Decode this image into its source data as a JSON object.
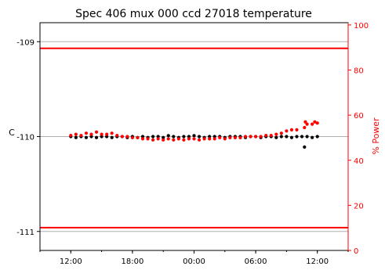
{
  "chart_data": {
    "type": "scatter",
    "title": "Spec 406 mux 000 ccd 27018 temperature",
    "ylabel": "C",
    "y2label": "% Power",
    "xlim": [
      "2000-01-01 09:00",
      "2000-01-02 15:00"
    ],
    "ylim": [
      -111.2,
      -108.8
    ],
    "y2lim": [
      0,
      101
    ],
    "xticks": [
      {
        "x": "2000-01-01 12:00",
        "label": "12:00"
      },
      {
        "x": "2000-01-01 18:00",
        "label": "18:00"
      },
      {
        "x": "2000-01-02 00:00",
        "label": "00:00"
      },
      {
        "x": "2000-01-02 06:00",
        "label": "06:00"
      },
      {
        "x": "2000-01-02 12:00",
        "label": "12:00"
      }
    ],
    "yticks": [
      {
        "y": -109,
        "label": "-109"
      },
      {
        "y": -110,
        "label": "-110"
      },
      {
        "y": -111,
        "label": "-111"
      }
    ],
    "y2ticks": [
      {
        "y": 0,
        "label": "0"
      },
      {
        "y": 20,
        "label": "20"
      },
      {
        "y": 40,
        "label": "40"
      },
      {
        "y": 60,
        "label": "60"
      },
      {
        "y": 80,
        "label": "80"
      },
      {
        "y": 100,
        "label": "100"
      }
    ],
    "reference_lines": [
      {
        "axis": "left",
        "y": -109.07,
        "color": "#ff0000"
      },
      {
        "axis": "left",
        "y": -110.96,
        "color": "#ff0000"
      }
    ],
    "grid_lines_y": [
      -109,
      -110,
      -111
    ],
    "series": [
      {
        "axis": "left",
        "color": "#000000",
        "points": [
          [
            "2000-01-01 12:00",
            -110.0
          ],
          [
            "2000-01-01 12:30",
            -110.01
          ],
          [
            "2000-01-01 13:00",
            -110.0
          ],
          [
            "2000-01-01 13:30",
            -110.01
          ],
          [
            "2000-01-01 14:00",
            -110.0
          ],
          [
            "2000-01-01 14:30",
            -110.01
          ],
          [
            "2000-01-01 15:00",
            -110.0
          ],
          [
            "2000-01-01 15:30",
            -110.0
          ],
          [
            "2000-01-01 16:00",
            -110.01
          ],
          [
            "2000-01-01 16:30",
            -110.0
          ],
          [
            "2000-01-01 17:00",
            -110.0
          ],
          [
            "2000-01-01 17:30",
            -110.01
          ],
          [
            "2000-01-01 18:00",
            -110.0
          ],
          [
            "2000-01-01 18:30",
            -110.01
          ],
          [
            "2000-01-01 19:00",
            -110.0
          ],
          [
            "2000-01-01 19:30",
            -110.01
          ],
          [
            "2000-01-01 20:00",
            -110.0
          ],
          [
            "2000-01-01 20:30",
            -110.0
          ],
          [
            "2000-01-01 21:00",
            -110.01
          ],
          [
            "2000-01-01 21:30",
            -109.99
          ],
          [
            "2000-01-01 22:00",
            -110.0
          ],
          [
            "2000-01-01 22:30",
            -110.01
          ],
          [
            "2000-01-01 23:00",
            -110.0
          ],
          [
            "2000-01-01 23:30",
            -110.0
          ],
          [
            "2000-01-02 00:00",
            -109.99
          ],
          [
            "2000-01-02 00:30",
            -110.0
          ],
          [
            "2000-01-02 01:00",
            -110.01
          ],
          [
            "2000-01-02 01:30",
            -110.0
          ],
          [
            "2000-01-02 02:00",
            -110.0
          ],
          [
            "2000-01-02 02:30",
            -110.0
          ],
          [
            "2000-01-02 03:00",
            -110.01
          ],
          [
            "2000-01-02 03:30",
            -110.0
          ],
          [
            "2000-01-02 04:00",
            -110.0
          ],
          [
            "2000-01-02 04:30",
            -110.0
          ],
          [
            "2000-01-02 05:00",
            -110.01
          ],
          [
            "2000-01-02 05:30",
            -110.0
          ],
          [
            "2000-01-02 06:00",
            -110.0
          ],
          [
            "2000-01-02 06:30",
            -110.01
          ],
          [
            "2000-01-02 07:00",
            -110.0
          ],
          [
            "2000-01-02 07:30",
            -110.0
          ],
          [
            "2000-01-02 08:00",
            -110.01
          ],
          [
            "2000-01-02 08:30",
            -110.0
          ],
          [
            "2000-01-02 09:00",
            -110.0
          ],
          [
            "2000-01-02 09:30",
            -110.01
          ],
          [
            "2000-01-02 10:00",
            -110.0
          ],
          [
            "2000-01-02 10:30",
            -110.0
          ],
          [
            "2000-01-02 10:45",
            -110.11
          ],
          [
            "2000-01-02 11:00",
            -110.0
          ],
          [
            "2000-01-02 11:30",
            -110.01
          ],
          [
            "2000-01-02 12:00",
            -110.0
          ]
        ]
      },
      {
        "axis": "right",
        "color": "#ff0000",
        "points": [
          [
            "2000-01-01 12:00",
            51.0
          ],
          [
            "2000-01-01 12:30",
            51.5
          ],
          [
            "2000-01-01 13:00",
            51.0
          ],
          [
            "2000-01-01 13:30",
            52.0
          ],
          [
            "2000-01-01 14:00",
            51.5
          ],
          [
            "2000-01-01 14:30",
            52.5
          ],
          [
            "2000-01-01 15:00",
            51.5
          ],
          [
            "2000-01-01 15:30",
            51.5
          ],
          [
            "2000-01-01 16:00",
            52.0
          ],
          [
            "2000-01-01 16:30",
            51.0
          ],
          [
            "2000-01-01 17:00",
            50.5
          ],
          [
            "2000-01-01 17:30",
            50.5
          ],
          [
            "2000-01-01 18:00",
            50.0
          ],
          [
            "2000-01-01 18:30",
            50.0
          ],
          [
            "2000-01-01 19:00",
            49.5
          ],
          [
            "2000-01-01 19:30",
            49.5
          ],
          [
            "2000-01-01 20:00",
            49.0
          ],
          [
            "2000-01-01 20:30",
            49.5
          ],
          [
            "2000-01-01 21:00",
            49.0
          ],
          [
            "2000-01-01 21:30",
            49.5
          ],
          [
            "2000-01-01 22:00",
            49.0
          ],
          [
            "2000-01-01 22:30",
            49.5
          ],
          [
            "2000-01-01 23:00",
            49.0
          ],
          [
            "2000-01-01 23:30",
            49.5
          ],
          [
            "2000-01-02 00:00",
            49.5
          ],
          [
            "2000-01-02 00:30",
            49.0
          ],
          [
            "2000-01-02 01:00",
            49.5
          ],
          [
            "2000-01-02 01:30",
            49.5
          ],
          [
            "2000-01-02 02:00",
            49.5
          ],
          [
            "2000-01-02 02:30",
            50.0
          ],
          [
            "2000-01-02 03:00",
            49.5
          ],
          [
            "2000-01-02 03:30",
            50.0
          ],
          [
            "2000-01-02 04:00",
            50.0
          ],
          [
            "2000-01-02 04:30",
            50.0
          ],
          [
            "2000-01-02 05:00",
            50.5
          ],
          [
            "2000-01-02 05:30",
            50.5
          ],
          [
            "2000-01-02 06:00",
            50.5
          ],
          [
            "2000-01-02 06:30",
            50.5
          ],
          [
            "2000-01-02 07:00",
            51.0
          ],
          [
            "2000-01-02 07:30",
            51.0
          ],
          [
            "2000-01-02 08:00",
            51.5
          ],
          [
            "2000-01-02 08:30",
            52.0
          ],
          [
            "2000-01-02 09:00",
            53.0
          ],
          [
            "2000-01-02 09:30",
            53.5
          ],
          [
            "2000-01-02 10:00",
            53.5
          ],
          [
            "2000-01-02 10:45",
            54.5
          ],
          [
            "2000-01-02 10:50",
            57.0
          ],
          [
            "2000-01-02 11:00",
            56.0
          ],
          [
            "2000-01-02 11:30",
            56.0
          ],
          [
            "2000-01-02 11:45",
            57.0
          ],
          [
            "2000-01-02 12:00",
            56.5
          ]
        ]
      }
    ]
  }
}
